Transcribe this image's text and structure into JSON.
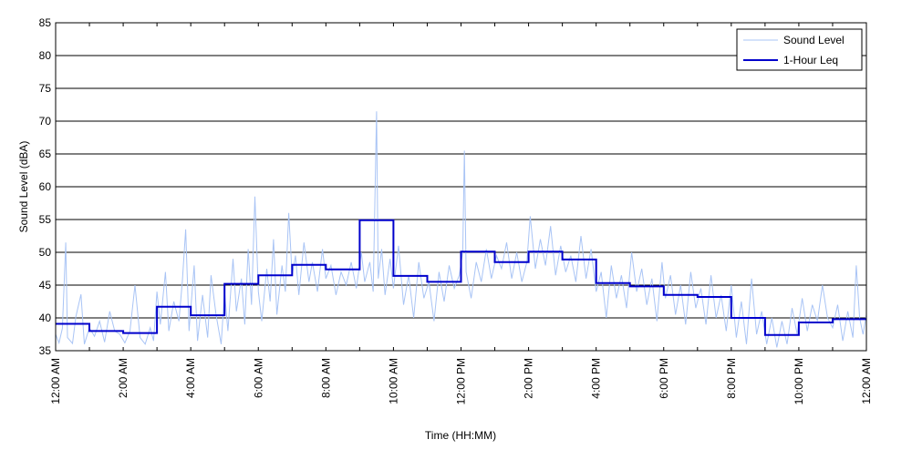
{
  "chart_data": {
    "type": "line",
    "xlabel": "Time (HH:MM)",
    "ylabel": "Sound Level (dBA)",
    "xlim": [
      0,
      24
    ],
    "ylim": [
      35,
      85
    ],
    "y_ticks": [
      35,
      40,
      45,
      50,
      55,
      60,
      65,
      70,
      75,
      80,
      85
    ],
    "x_ticks": [
      {
        "hour": 0,
        "label": "12:00 AM"
      },
      {
        "hour": 2,
        "label": "2:00 AM"
      },
      {
        "hour": 4,
        "label": "4:00 AM"
      },
      {
        "hour": 6,
        "label": "6:00 AM"
      },
      {
        "hour": 8,
        "label": "8:00 AM"
      },
      {
        "hour": 10,
        "label": "10:00 AM"
      },
      {
        "hour": 12,
        "label": "12:00 PM"
      },
      {
        "hour": 14,
        "label": "2:00 PM"
      },
      {
        "hour": 16,
        "label": "4:00 PM"
      },
      {
        "hour": 18,
        "label": "6:00 PM"
      },
      {
        "hour": 20,
        "label": "8:00 PM"
      },
      {
        "hour": 22,
        "label": "10:00 PM"
      },
      {
        "hour": 24,
        "label": "12:00 AM"
      }
    ],
    "grid": "horizontal",
    "legend_position": "top-right",
    "series": [
      {
        "name": "Sound Level",
        "style": "thin",
        "color": "#a9c4f5",
        "points": [
          [
            0.0,
            37.5
          ],
          [
            0.1,
            36.2
          ],
          [
            0.2,
            38.4
          ],
          [
            0.3,
            51.5
          ],
          [
            0.35,
            37.0
          ],
          [
            0.5,
            36.1
          ],
          [
            0.6,
            40.2
          ],
          [
            0.75,
            43.6
          ],
          [
            0.85,
            36.0
          ],
          [
            1.0,
            38.5
          ],
          [
            1.15,
            37.2
          ],
          [
            1.3,
            39.5
          ],
          [
            1.45,
            36.3
          ],
          [
            1.6,
            41.0
          ],
          [
            1.75,
            38.0
          ],
          [
            1.9,
            37.5
          ],
          [
            2.05,
            36.2
          ],
          [
            2.2,
            38.0
          ],
          [
            2.35,
            45.0
          ],
          [
            2.5,
            37.0
          ],
          [
            2.65,
            36.0
          ],
          [
            2.8,
            38.5
          ],
          [
            2.9,
            36.5
          ],
          [
            3.0,
            44.0
          ],
          [
            3.1,
            39.0
          ],
          [
            3.25,
            47.0
          ],
          [
            3.35,
            38.0
          ],
          [
            3.5,
            42.5
          ],
          [
            3.65,
            39.5
          ],
          [
            3.75,
            45.5
          ],
          [
            3.85,
            53.5
          ],
          [
            3.95,
            38.0
          ],
          [
            4.1,
            48.0
          ],
          [
            4.2,
            36.5
          ],
          [
            4.35,
            43.5
          ],
          [
            4.5,
            37.0
          ],
          [
            4.6,
            46.5
          ],
          [
            4.75,
            40.5
          ],
          [
            4.9,
            36.0
          ],
          [
            5.0,
            44.0
          ],
          [
            5.1,
            38.0
          ],
          [
            5.25,
            49.0
          ],
          [
            5.35,
            41.0
          ],
          [
            5.5,
            46.0
          ],
          [
            5.6,
            39.0
          ],
          [
            5.7,
            50.5
          ],
          [
            5.8,
            42.0
          ],
          [
            5.9,
            58.5
          ],
          [
            6.0,
            44.0
          ],
          [
            6.1,
            39.5
          ],
          [
            6.25,
            47.5
          ],
          [
            6.35,
            42.5
          ],
          [
            6.45,
            52.0
          ],
          [
            6.55,
            40.5
          ],
          [
            6.7,
            48.0
          ],
          [
            6.8,
            44.0
          ],
          [
            6.9,
            56.0
          ],
          [
            7.0,
            46.5
          ],
          [
            7.1,
            49.5
          ],
          [
            7.2,
            43.5
          ],
          [
            7.35,
            51.5
          ],
          [
            7.5,
            45.5
          ],
          [
            7.6,
            48.5
          ],
          [
            7.75,
            44.0
          ],
          [
            7.9,
            50.5
          ],
          [
            8.0,
            46.0
          ],
          [
            8.15,
            48.0
          ],
          [
            8.3,
            43.5
          ],
          [
            8.45,
            47.0
          ],
          [
            8.6,
            45.0
          ],
          [
            8.75,
            48.5
          ],
          [
            8.9,
            44.5
          ],
          [
            9.05,
            50.0
          ],
          [
            9.15,
            45.5
          ],
          [
            9.3,
            48.5
          ],
          [
            9.4,
            44.0
          ],
          [
            9.5,
            71.5
          ],
          [
            9.55,
            46.0
          ],
          [
            9.65,
            50.5
          ],
          [
            9.75,
            43.5
          ],
          [
            9.9,
            49.0
          ],
          [
            10.0,
            44.5
          ],
          [
            10.15,
            51.0
          ],
          [
            10.3,
            42.0
          ],
          [
            10.45,
            46.5
          ],
          [
            10.6,
            40.0
          ],
          [
            10.75,
            48.5
          ],
          [
            10.9,
            43.0
          ],
          [
            11.05,
            45.5
          ],
          [
            11.2,
            39.5
          ],
          [
            11.35,
            47.0
          ],
          [
            11.5,
            42.5
          ],
          [
            11.65,
            48.0
          ],
          [
            11.8,
            44.5
          ],
          [
            11.95,
            46.5
          ],
          [
            12.05,
            50.0
          ],
          [
            12.1,
            65.5
          ],
          [
            12.15,
            47.0
          ],
          [
            12.3,
            43.0
          ],
          [
            12.45,
            48.5
          ],
          [
            12.6,
            45.5
          ],
          [
            12.75,
            50.5
          ],
          [
            12.9,
            46.0
          ],
          [
            13.05,
            49.5
          ],
          [
            13.2,
            47.5
          ],
          [
            13.35,
            51.5
          ],
          [
            13.5,
            46.0
          ],
          [
            13.65,
            50.0
          ],
          [
            13.8,
            45.5
          ],
          [
            13.95,
            48.5
          ],
          [
            14.05,
            55.5
          ],
          [
            14.2,
            47.5
          ],
          [
            14.35,
            52.0
          ],
          [
            14.5,
            48.0
          ],
          [
            14.65,
            54.0
          ],
          [
            14.8,
            46.5
          ],
          [
            14.95,
            51.0
          ],
          [
            15.1,
            47.0
          ],
          [
            15.25,
            49.5
          ],
          [
            15.4,
            45.5
          ],
          [
            15.55,
            52.5
          ],
          [
            15.7,
            46.0
          ],
          [
            15.85,
            50.5
          ],
          [
            16.0,
            44.0
          ],
          [
            16.15,
            47.0
          ],
          [
            16.3,
            40.0
          ],
          [
            16.45,
            48.0
          ],
          [
            16.6,
            43.0
          ],
          [
            16.75,
            46.5
          ],
          [
            16.9,
            41.5
          ],
          [
            17.05,
            50.0
          ],
          [
            17.2,
            44.0
          ],
          [
            17.35,
            47.5
          ],
          [
            17.5,
            42.0
          ],
          [
            17.65,
            46.0
          ],
          [
            17.8,
            39.5
          ],
          [
            17.95,
            48.5
          ],
          [
            18.05,
            43.0
          ],
          [
            18.2,
            46.5
          ],
          [
            18.35,
            40.5
          ],
          [
            18.5,
            45.0
          ],
          [
            18.65,
            39.0
          ],
          [
            18.8,
            47.0
          ],
          [
            18.95,
            41.5
          ],
          [
            19.1,
            44.5
          ],
          [
            19.25,
            39.0
          ],
          [
            19.4,
            46.5
          ],
          [
            19.55,
            40.0
          ],
          [
            19.7,
            43.5
          ],
          [
            19.85,
            38.0
          ],
          [
            20.0,
            45.0
          ],
          [
            20.15,
            37.0
          ],
          [
            20.3,
            42.5
          ],
          [
            20.45,
            36.0
          ],
          [
            20.6,
            46.0
          ],
          [
            20.75,
            37.5
          ],
          [
            20.9,
            41.0
          ],
          [
            21.05,
            36.0
          ],
          [
            21.2,
            40.0
          ],
          [
            21.35,
            35.5
          ],
          [
            21.5,
            39.5
          ],
          [
            21.65,
            36.0
          ],
          [
            21.8,
            41.5
          ],
          [
            21.95,
            37.5
          ],
          [
            22.1,
            43.0
          ],
          [
            22.25,
            38.0
          ],
          [
            22.4,
            42.0
          ],
          [
            22.55,
            39.5
          ],
          [
            22.7,
            45.0
          ],
          [
            22.85,
            40.0
          ],
          [
            23.0,
            38.5
          ],
          [
            23.15,
            42.0
          ],
          [
            23.3,
            36.5
          ],
          [
            23.45,
            41.0
          ],
          [
            23.6,
            37.0
          ],
          [
            23.7,
            48.0
          ],
          [
            23.8,
            40.0
          ],
          [
            23.9,
            37.5
          ],
          [
            24.0,
            40.5
          ]
        ]
      },
      {
        "name": "1-Hour Leq",
        "style": "step",
        "color": "#0000cc",
        "hourly": [
          39.1,
          38.0,
          37.7,
          41.7,
          40.4,
          45.2,
          46.5,
          48.1,
          47.4,
          54.9,
          46.4,
          45.5,
          50.1,
          48.5,
          50.1,
          48.9,
          45.3,
          44.8,
          43.5,
          43.2,
          40.0,
          37.4,
          39.3,
          39.8
        ]
      }
    ]
  }
}
